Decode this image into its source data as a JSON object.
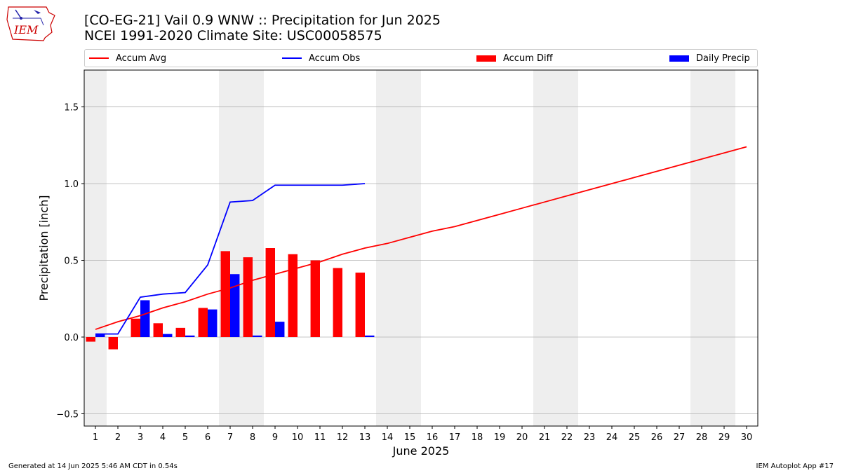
{
  "header": {
    "title_line1": "[CO-EG-21] Vail 0.9 WNW :: Precipitation for Jun 2025",
    "title_line2": "NCEI 1991-2020 Climate Site: USC00058575"
  },
  "logo": {
    "text": "IEM"
  },
  "footer": {
    "left": "Generated at 14 Jun 2025 5:46 AM CDT in 0.54s",
    "right": "IEM Autoplot App #17"
  },
  "colors": {
    "accum_avg": "#ff0000",
    "accum_obs": "#0000ff",
    "accum_diff": "#ff0000",
    "daily_precip": "#0000ff",
    "weekend_shade": "#eeeeee",
    "grid": "#b0b0b0"
  },
  "chart_data": {
    "type": "bar",
    "xlabel": "June 2025",
    "ylabel": "Precipitation [inch]",
    "xlim": [
      0.5,
      30.5
    ],
    "ylim": [
      -0.58,
      1.74
    ],
    "yticks": [
      -0.5,
      0.0,
      0.5,
      1.0,
      1.5
    ],
    "ytick_labels": [
      "−0.5",
      "0.0",
      "0.5",
      "1.0",
      "1.5"
    ],
    "xticks": [
      1,
      2,
      3,
      4,
      5,
      6,
      7,
      8,
      9,
      10,
      11,
      12,
      13,
      14,
      15,
      16,
      17,
      18,
      19,
      20,
      21,
      22,
      23,
      24,
      25,
      26,
      27,
      28,
      29,
      30
    ],
    "xtick_labels": [
      "1",
      "2",
      "3",
      "4",
      "5",
      "6",
      "7",
      "8",
      "9",
      "10",
      "11",
      "12",
      "13",
      "14",
      "15",
      "16",
      "17",
      "18",
      "19",
      "20",
      "21",
      "22",
      "23",
      "24",
      "25",
      "26",
      "27",
      "28",
      "29",
      "30"
    ],
    "grid": "horizontal",
    "legend_position": "top",
    "weekend_days": [
      1,
      7,
      8,
      14,
      15,
      21,
      22,
      28,
      29
    ],
    "series": [
      {
        "name": "Accum Avg",
        "kind": "line",
        "x": [
          1,
          2,
          3,
          4,
          5,
          6,
          7,
          8,
          9,
          10,
          11,
          12,
          13,
          14,
          15,
          16,
          17,
          18,
          19,
          20,
          21,
          22,
          23,
          24,
          25,
          26,
          27,
          28,
          29,
          30
        ],
        "values": [
          0.05,
          0.1,
          0.14,
          0.19,
          0.23,
          0.28,
          0.32,
          0.37,
          0.41,
          0.45,
          0.49,
          0.54,
          0.58,
          0.61,
          0.65,
          0.69,
          0.72,
          0.76,
          0.8,
          0.84,
          0.88,
          0.92,
          0.96,
          1.0,
          1.04,
          1.08,
          1.12,
          1.16,
          1.2,
          1.24
        ]
      },
      {
        "name": "Accum Obs",
        "kind": "line",
        "x": [
          1,
          2,
          3,
          4,
          5,
          6,
          7,
          8,
          9,
          10,
          11,
          12,
          13
        ],
        "values": [
          0.02,
          0.02,
          0.26,
          0.28,
          0.29,
          0.47,
          0.88,
          0.89,
          0.99,
          0.99,
          0.99,
          0.99,
          1.0
        ]
      },
      {
        "name": "Accum Diff",
        "kind": "bar",
        "x": [
          1,
          2,
          3,
          4,
          5,
          6,
          7,
          8,
          9,
          10,
          11,
          12,
          13
        ],
        "values": [
          -0.03,
          -0.08,
          0.12,
          0.09,
          0.06,
          0.19,
          0.56,
          0.52,
          0.58,
          0.54,
          0.5,
          0.45,
          0.42
        ]
      },
      {
        "name": "Daily Precip",
        "kind": "bar",
        "x": [
          1,
          2,
          3,
          4,
          5,
          6,
          7,
          8,
          9,
          10,
          11,
          12,
          13
        ],
        "values": [
          0.02,
          0.0,
          0.24,
          0.02,
          0.01,
          0.18,
          0.41,
          0.01,
          0.1,
          0.0,
          0.0,
          0.0,
          0.01
        ]
      }
    ]
  }
}
